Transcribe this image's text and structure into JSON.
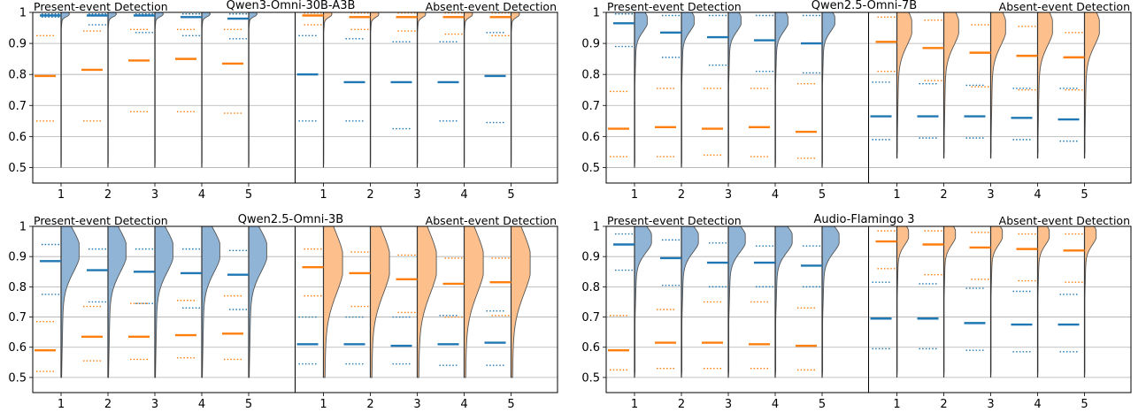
{
  "figure": {
    "colors": {
      "present": "#1f77b4",
      "absent": "#ff7f0e",
      "present_fill": "#8fb4d6",
      "absent_fill": "#fdc08c"
    }
  },
  "chart_data": [
    {
      "type": "violin",
      "title": "Qwen3-Omni-30B-A3B",
      "left_label": "Present-event Detection",
      "right_label": "Absent-event Detection",
      "categories": [
        "1",
        "2",
        "3",
        "4",
        "5"
      ],
      "ylim": [
        0.45,
        1.0
      ],
      "yticks": [
        0.5,
        0.6,
        0.7,
        0.8,
        0.9,
        1.0
      ],
      "grid": true,
      "present": {
        "width": 0.4,
        "peak": 0.995,
        "spread": 0.008,
        "min": 0.5,
        "blue_mean": [
          0.99,
          0.99,
          0.99,
          0.985,
          0.98
        ],
        "blue_band": [
          [
            0.985,
            0.995
          ],
          [
            0.96,
            0.995
          ],
          [
            0.935,
            0.995
          ],
          [
            0.925,
            0.995
          ],
          [
            0.915,
            0.995
          ]
        ],
        "orange_mean": [
          0.795,
          0.815,
          0.845,
          0.85,
          0.835
        ],
        "orange_band": [
          [
            0.65,
            0.925
          ],
          [
            0.65,
            0.94
          ],
          [
            0.68,
            0.945
          ],
          [
            0.68,
            0.945
          ],
          [
            0.675,
            0.945
          ]
        ]
      },
      "absent": {
        "width": 0.4,
        "peak": 0.995,
        "spread": 0.01,
        "min": 0.5,
        "orange_mean": [
          0.99,
          0.985,
          0.985,
          0.985,
          0.985
        ],
        "orange_band": [
          [
            0.96,
            0.998
          ],
          [
            0.945,
            0.998
          ],
          [
            0.94,
            0.998
          ],
          [
            0.93,
            0.998
          ],
          [
            0.925,
            0.998
          ]
        ],
        "blue_mean": [
          0.8,
          0.775,
          0.775,
          0.775,
          0.795
        ],
        "blue_band": [
          [
            0.65,
            0.925
          ],
          [
            0.65,
            0.915
          ],
          [
            0.625,
            0.905
          ],
          [
            0.65,
            0.905
          ],
          [
            0.645,
            0.935
          ]
        ]
      }
    },
    {
      "type": "violin",
      "title": "Qwen2.5-Omni-7B",
      "left_label": "Present-event Detection",
      "right_label": "Absent-event Detection",
      "categories": [
        "1",
        "2",
        "3",
        "4",
        "5"
      ],
      "ylim": [
        0.45,
        1.0
      ],
      "yticks": [
        0.5,
        0.6,
        0.7,
        0.8,
        0.9,
        1.0
      ],
      "grid": true,
      "present": {
        "width": 0.6,
        "peak": 0.975,
        "spread": 0.035,
        "min": 0.5,
        "blue_mean": [
          0.965,
          0.935,
          0.92,
          0.91,
          0.9
        ],
        "blue_band": [
          [
            0.89,
            0.995
          ],
          [
            0.855,
            0.99
          ],
          [
            0.83,
            0.99
          ],
          [
            0.81,
            0.99
          ],
          [
            0.805,
            0.99
          ]
        ],
        "orange_mean": [
          0.625,
          0.63,
          0.625,
          0.63,
          0.615
        ],
        "orange_band": [
          [
            0.535,
            0.745
          ],
          [
            0.535,
            0.755
          ],
          [
            0.54,
            0.755
          ],
          [
            0.535,
            0.755
          ],
          [
            0.53,
            0.77
          ]
        ]
      },
      "absent": {
        "width": 0.7,
        "peak": 0.955,
        "spread": 0.06,
        "min": 0.53,
        "orange_mean": [
          0.905,
          0.885,
          0.87,
          0.86,
          0.855
        ],
        "orange_band": [
          [
            0.81,
            0.985
          ],
          [
            0.78,
            0.975
          ],
          [
            0.76,
            0.96
          ],
          [
            0.75,
            0.955
          ],
          [
            0.75,
            0.935
          ]
        ],
        "blue_mean": [
          0.665,
          0.665,
          0.665,
          0.66,
          0.655
        ],
        "blue_band": [
          [
            0.59,
            0.775
          ],
          [
            0.595,
            0.77
          ],
          [
            0.595,
            0.765
          ],
          [
            0.59,
            0.755
          ],
          [
            0.585,
            0.755
          ]
        ]
      }
    },
    {
      "type": "violin",
      "title": "Qwen2.5-Omni-3B",
      "left_label": "Present-event Detection",
      "right_label": "Absent-event Detection",
      "categories": [
        "1",
        "2",
        "3",
        "4",
        "5"
      ],
      "ylim": [
        0.45,
        1.0
      ],
      "yticks": [
        0.5,
        0.6,
        0.7,
        0.8,
        0.9,
        1.0
      ],
      "grid": true,
      "present": {
        "width": 0.85,
        "peak": 0.92,
        "spread": 0.07,
        "min": 0.5,
        "blue_mean": [
          0.885,
          0.855,
          0.85,
          0.845,
          0.84
        ],
        "blue_band": [
          [
            0.775,
            0.94
          ],
          [
            0.75,
            0.925
          ],
          [
            0.745,
            0.925
          ],
          [
            0.73,
            0.925
          ],
          [
            0.725,
            0.92
          ]
        ],
        "orange_mean": [
          0.59,
          0.635,
          0.635,
          0.64,
          0.645
        ],
        "orange_band": [
          [
            0.52,
            0.685
          ],
          [
            0.555,
            0.735
          ],
          [
            0.56,
            0.745
          ],
          [
            0.565,
            0.755
          ],
          [
            0.56,
            0.77
          ]
        ]
      },
      "absent": {
        "width": 0.9,
        "peak": 0.88,
        "spread": 0.1,
        "min": 0.5,
        "orange_mean": [
          0.865,
          0.845,
          0.825,
          0.81,
          0.815
        ],
        "orange_band": [
          [
            0.77,
            0.925
          ],
          [
            0.735,
            0.915
          ],
          [
            0.715,
            0.905
          ],
          [
            0.7,
            0.895
          ],
          [
            0.705,
            0.895
          ]
        ],
        "blue_mean": [
          0.61,
          0.61,
          0.605,
          0.61,
          0.615
        ],
        "blue_band": [
          [
            0.545,
            0.7
          ],
          [
            0.545,
            0.7
          ],
          [
            0.545,
            0.7
          ],
          [
            0.54,
            0.705
          ],
          [
            0.54,
            0.72
          ]
        ]
      }
    },
    {
      "type": "violin",
      "title": "Audio-Flamingo 3",
      "left_label": "Present-event Detection",
      "right_label": "Absent-event Detection",
      "categories": [
        "1",
        "2",
        "3",
        "4",
        "5"
      ],
      "ylim": [
        0.45,
        1.0
      ],
      "yticks": [
        0.5,
        0.6,
        0.7,
        0.8,
        0.9,
        1.0
      ],
      "grid": true,
      "present": {
        "width": 0.8,
        "peak": 0.96,
        "spread": 0.045,
        "min": 0.5,
        "blue_mean": [
          0.94,
          0.895,
          0.88,
          0.88,
          0.87
        ],
        "blue_band": [
          [
            0.855,
            0.975
          ],
          [
            0.805,
            0.955
          ],
          [
            0.8,
            0.945
          ],
          [
            0.8,
            0.935
          ],
          [
            0.8,
            0.935
          ]
        ],
        "orange_mean": [
          0.59,
          0.615,
          0.615,
          0.61,
          0.605
        ],
        "orange_band": [
          [
            0.525,
            0.705
          ],
          [
            0.53,
            0.725
          ],
          [
            0.53,
            0.75
          ],
          [
            0.53,
            0.75
          ],
          [
            0.525,
            0.73
          ]
        ]
      },
      "absent": {
        "width": 0.55,
        "peak": 0.975,
        "spread": 0.035,
        "min": 0.5,
        "orange_mean": [
          0.95,
          0.94,
          0.93,
          0.925,
          0.92
        ],
        "orange_band": [
          [
            0.86,
            0.985
          ],
          [
            0.84,
            0.985
          ],
          [
            0.825,
            0.98
          ],
          [
            0.82,
            0.975
          ],
          [
            0.815,
            0.975
          ]
        ],
        "blue_mean": [
          0.695,
          0.695,
          0.68,
          0.675,
          0.675
        ],
        "blue_band": [
          [
            0.595,
            0.815
          ],
          [
            0.595,
            0.81
          ],
          [
            0.59,
            0.795
          ],
          [
            0.585,
            0.785
          ],
          [
            0.585,
            0.775
          ]
        ]
      }
    }
  ]
}
